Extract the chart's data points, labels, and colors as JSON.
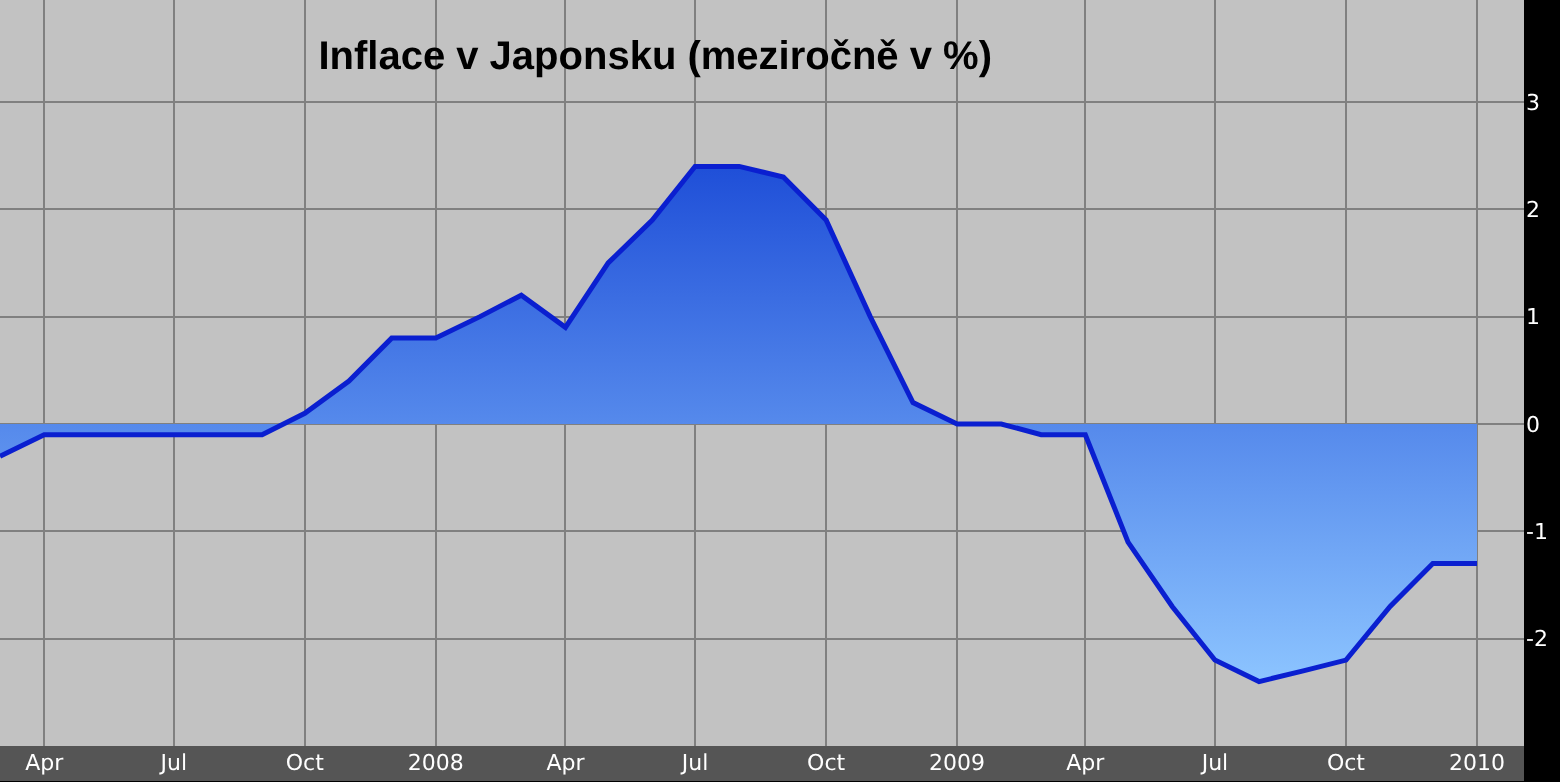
{
  "chart_data": {
    "type": "area",
    "title": "Inflace v Japonsku (meziročně v %)",
    "x": [
      "2007-03",
      "2007-04",
      "2007-05",
      "2007-06",
      "2007-07",
      "2007-08",
      "2007-09",
      "2007-10",
      "2007-11",
      "2007-12",
      "2008-01",
      "2008-02",
      "2008-03",
      "2008-04",
      "2008-05",
      "2008-06",
      "2008-07",
      "2008-08",
      "2008-09",
      "2008-10",
      "2008-11",
      "2008-12",
      "2009-01",
      "2009-02",
      "2009-03",
      "2009-04",
      "2009-05",
      "2009-06",
      "2009-07",
      "2009-08",
      "2009-09",
      "2009-10",
      "2009-11",
      "2009-12",
      "2010-01"
    ],
    "series": [
      {
        "color": "#0a1fd0",
        "values": [
          -0.3,
          -0.1,
          -0.1,
          -0.1,
          -0.1,
          -0.1,
          -0.1,
          0.1,
          0.4,
          0.8,
          0.8,
          1.0,
          1.2,
          0.9,
          1.5,
          1.9,
          2.4,
          2.4,
          2.3,
          1.9,
          1.0,
          0.2,
          0.0,
          0.0,
          -0.1,
          -0.1,
          -1.1,
          -1.7,
          -2.2,
          -2.4,
          -2.3,
          -2.2,
          -1.7,
          -1.3,
          -1.3
        ]
      }
    ],
    "xlim": [
      "2007-03-01",
      "2010-02-03"
    ],
    "xticks": [
      {
        "value": "2007-04",
        "label": "Apr"
      },
      {
        "value": "2007-07",
        "label": "Jul"
      },
      {
        "value": "2007-10",
        "label": "Oct"
      },
      {
        "value": "2008-01",
        "label": "2008"
      },
      {
        "value": "2008-04",
        "label": "Apr"
      },
      {
        "value": "2008-07",
        "label": "Jul"
      },
      {
        "value": "2008-10",
        "label": "Oct"
      },
      {
        "value": "2009-01",
        "label": "2009"
      },
      {
        "value": "2009-04",
        "label": "Apr"
      },
      {
        "value": "2009-07",
        "label": "Jul"
      },
      {
        "value": "2009-10",
        "label": "Oct"
      },
      {
        "value": "2010-01",
        "label": "2010"
      }
    ],
    "ylim": [
      -3,
      3.95
    ],
    "yticks": [
      -2,
      -1,
      0,
      1,
      2,
      3
    ],
    "grid": true
  }
}
